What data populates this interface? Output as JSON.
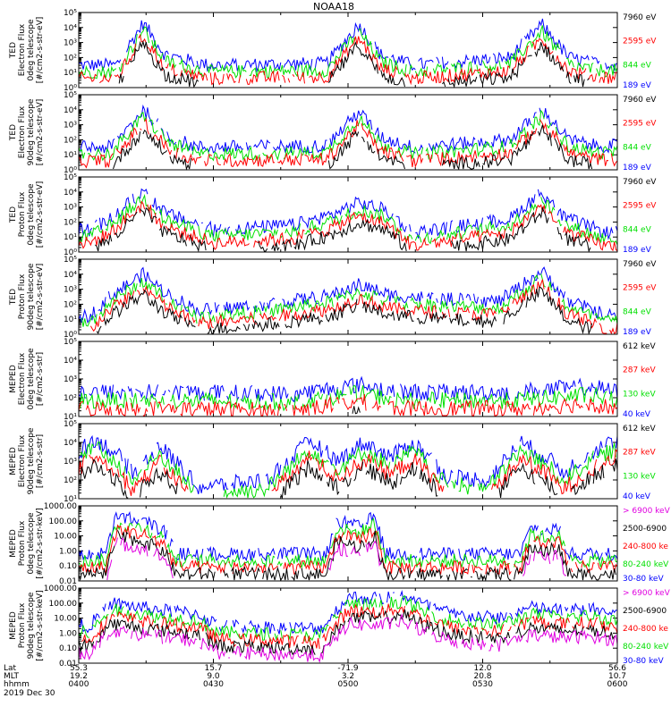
{
  "title": "NOAA18",
  "footer": {
    "row_labels": [
      "Lat",
      "MLT",
      "hhmm",
      "2019 Dec 30"
    ],
    "ticks": [
      {
        "lat": "55.3",
        "mlt": "19.2",
        "hhmm": "0400"
      },
      {
        "lat": "15.7",
        "mlt": "9.0",
        "hhmm": "0430"
      },
      {
        "lat": "-71.9",
        "mlt": "3.2",
        "hhmm": "0500"
      },
      {
        "lat": "12.0",
        "mlt": "20.8",
        "hhmm": "0530"
      },
      {
        "lat": "56.6",
        "mlt": "10.7",
        "hhmm": "0600"
      }
    ]
  },
  "colors": {
    "black": "#000000",
    "red": "#ff0000",
    "green": "#00e000",
    "blue": "#0000ff",
    "magenta": "#e000e0"
  },
  "chart_data": [
    {
      "type": "line",
      "ylabel": [
        "TED",
        "Electron Flux",
        "0deg telescope",
        "[#/cm2-s-str-eV]"
      ],
      "ylim": [
        1,
        100000
      ],
      "scale": "log",
      "tick_labels": [
        "10⁰",
        "10¹",
        "10²",
        "10³",
        "10⁴",
        "10⁵"
      ],
      "series": [
        {
          "name": "7960 eV",
          "color": "black"
        },
        {
          "name": "2595 eV",
          "color": "red"
        },
        {
          "name": "844 eV",
          "color": "green"
        },
        {
          "name": "189 eV",
          "color": "blue"
        }
      ],
      "profile": [
        [
          0.07,
          1.5
        ],
        [
          0.12,
          4.3
        ],
        [
          0.16,
          2.2
        ],
        [
          0.24,
          1.5
        ],
        [
          0.46,
          1.6
        ],
        [
          0.52,
          4.2
        ],
        [
          0.56,
          2.2
        ],
        [
          0.62,
          1.5
        ],
        [
          0.8,
          2.0
        ],
        [
          0.86,
          4.2
        ],
        [
          0.91,
          2.0
        ],
        [
          0.96,
          1.6
        ]
      ]
    },
    {
      "type": "line",
      "ylabel": [
        "TED",
        "Electron Flux",
        "90deg telescope",
        "[#/cm2-s-str-eV]"
      ],
      "ylim": [
        1,
        100000
      ],
      "scale": "log",
      "tick_labels": [
        "10⁰",
        "10¹",
        "10²",
        "10³",
        "10⁴",
        "10⁵"
      ],
      "series": [
        {
          "name": "7960 eV",
          "color": "black"
        },
        {
          "name": "2595 eV",
          "color": "red"
        },
        {
          "name": "844 eV",
          "color": "green"
        },
        {
          "name": "189 eV",
          "color": "blue"
        }
      ],
      "profile": [
        [
          0.06,
          1.5
        ],
        [
          0.12,
          4.0
        ],
        [
          0.17,
          2.2
        ],
        [
          0.22,
          1.5
        ],
        [
          0.46,
          1.6
        ],
        [
          0.52,
          3.9
        ],
        [
          0.56,
          2.2
        ],
        [
          0.62,
          1.5
        ],
        [
          0.8,
          2.0
        ],
        [
          0.86,
          4.0
        ],
        [
          0.91,
          2.0
        ],
        [
          0.96,
          1.6
        ]
      ]
    },
    {
      "type": "line",
      "ylabel": [
        "TED",
        "Proton Flux",
        "0deg telescope",
        "[#/cm2-s-str-eV]"
      ],
      "ylim": [
        1,
        100000
      ],
      "scale": "log",
      "tick_labels": [
        "10⁰",
        "10¹",
        "10²",
        "10³",
        "10⁴",
        "10⁵"
      ],
      "series": [
        {
          "name": "7960 eV",
          "color": "black"
        },
        {
          "name": "2595 eV",
          "color": "red"
        },
        {
          "name": "844 eV",
          "color": "green"
        },
        {
          "name": "189 eV",
          "color": "blue"
        }
      ],
      "profile": [
        [
          0.02,
          1.5
        ],
        [
          0.06,
          2.2
        ],
        [
          0.12,
          4.1
        ],
        [
          0.16,
          2.6
        ],
        [
          0.25,
          1.5
        ],
        [
          0.4,
          1.8
        ],
        [
          0.47,
          2.5
        ],
        [
          0.52,
          3.3
        ],
        [
          0.57,
          2.8
        ],
        [
          0.62,
          1.3
        ],
        [
          0.8,
          2.2
        ],
        [
          0.86,
          4.0
        ],
        [
          0.9,
          2.3
        ],
        [
          0.98,
          1.3
        ]
      ]
    },
    {
      "type": "line",
      "ylabel": [
        "TED",
        "Proton Flux",
        "90deg telescope",
        "[#/cm2-s-str-eV]"
      ],
      "ylim": [
        1,
        100000
      ],
      "scale": "log",
      "tick_labels": [
        "10⁰",
        "10¹",
        "10²",
        "10³",
        "10⁴",
        "10⁵"
      ],
      "series": [
        {
          "name": "7960 eV",
          "color": "black"
        },
        {
          "name": "2595 eV",
          "color": "red"
        },
        {
          "name": "844 eV",
          "color": "green"
        },
        {
          "name": "189 eV",
          "color": "blue"
        }
      ],
      "profile": [
        [
          0.02,
          1.2
        ],
        [
          0.06,
          2.6
        ],
        [
          0.12,
          4.0
        ],
        [
          0.16,
          2.8
        ],
        [
          0.22,
          1.6
        ],
        [
          0.35,
          2.0
        ],
        [
          0.47,
          2.6
        ],
        [
          0.52,
          3.3
        ],
        [
          0.58,
          2.6
        ],
        [
          0.7,
          2.3
        ],
        [
          0.78,
          2.2
        ],
        [
          0.86,
          4.2
        ],
        [
          0.91,
          2.2
        ],
        [
          0.98,
          1.3
        ]
      ]
    },
    {
      "type": "line",
      "ylabel": [
        "MEPED",
        "Electron Flux",
        "0deg telescope",
        "[#/cm2-s-str]"
      ],
      "ylim": [
        10,
        100000
      ],
      "scale": "log",
      "tick_labels": [
        "10¹",
        "10²",
        "10³",
        "10⁴",
        "10⁵"
      ],
      "series": [
        {
          "name": "612 keV",
          "color": "black"
        },
        {
          "name": "287 keV",
          "color": "red"
        },
        {
          "name": "130 keV",
          "color": "green"
        },
        {
          "name": "40 keV",
          "color": "blue"
        }
      ],
      "profile": [
        [
          0.0,
          2.3
        ],
        [
          0.2,
          2.3
        ],
        [
          0.4,
          2.2
        ],
        [
          0.52,
          2.7
        ],
        [
          0.6,
          2.3
        ],
        [
          0.8,
          2.3
        ],
        [
          0.95,
          2.6
        ],
        [
          1.0,
          2.3
        ]
      ]
    },
    {
      "type": "line",
      "ylabel": [
        "MEPED",
        "Electron Flux",
        "90deg telescope",
        "[#/cm2-s-str]"
      ],
      "ylim": [
        10,
        100000
      ],
      "scale": "log",
      "tick_labels": [
        "10¹",
        "10²",
        "10³",
        "10⁴",
        "10⁵"
      ],
      "series": [
        {
          "name": "612 keV",
          "color": "black"
        },
        {
          "name": "287 keV",
          "color": "red"
        },
        {
          "name": "130 keV",
          "color": "green"
        },
        {
          "name": "40 keV",
          "color": "blue"
        }
      ],
      "profile": [
        [
          0.0,
          3.5
        ],
        [
          0.03,
          4.2
        ],
        [
          0.07,
          3.4
        ],
        [
          0.1,
          2.4
        ],
        [
          0.15,
          3.8
        ],
        [
          0.19,
          2.7
        ],
        [
          0.22,
          1.6
        ],
        [
          0.35,
          2.0
        ],
        [
          0.43,
          4.1
        ],
        [
          0.48,
          3.0
        ],
        [
          0.53,
          4.0
        ],
        [
          0.58,
          3.2
        ],
        [
          0.62,
          4.0
        ],
        [
          0.66,
          3.0
        ],
        [
          0.68,
          2.2
        ],
        [
          0.76,
          2.0
        ],
        [
          0.82,
          4.0
        ],
        [
          0.87,
          3.2
        ],
        [
          0.9,
          2.4
        ],
        [
          0.95,
          3.5
        ],
        [
          1.0,
          4.1
        ]
      ]
    },
    {
      "type": "line",
      "ylabel": [
        "MEPED",
        "Proton Flux",
        "0deg telescope",
        "[#/cm2-s-str-keV]"
      ],
      "ylim": [
        0.01,
        1000
      ],
      "scale": "log",
      "tick_labels": [
        "0.01",
        "0.10",
        "1.00",
        "10.00",
        "100.00",
        "1000.00"
      ],
      "series": [
        {
          "name": "> 6900 keV",
          "color": "magenta"
        },
        {
          "name": "2500-6900",
          "color": "black"
        },
        {
          "name": "240-800 ke",
          "color": "red"
        },
        {
          "name": "80-240 keV",
          "color": "green"
        },
        {
          "name": "30-80 keV",
          "color": "blue"
        }
      ],
      "profile": [
        [
          0.05,
          -0.2
        ],
        [
          0.07,
          2.3
        ],
        [
          0.12,
          2.0
        ],
        [
          0.16,
          1.3
        ],
        [
          0.18,
          -0.2
        ],
        [
          0.46,
          -0.2
        ],
        [
          0.48,
          2.0
        ],
        [
          0.52,
          1.6
        ],
        [
          0.55,
          2.3
        ],
        [
          0.57,
          -0.2
        ],
        [
          0.82,
          -0.2
        ],
        [
          0.84,
          1.6
        ],
        [
          0.87,
          1.3
        ],
        [
          0.89,
          1.6
        ],
        [
          0.91,
          -0.2
        ]
      ]
    },
    {
      "type": "line",
      "ylabel": [
        "MEPED",
        "Proton Flux",
        "90deg telescope",
        "[#/cm2-s-str-keV]"
      ],
      "ylim": [
        0.01,
        1000
      ],
      "scale": "log",
      "tick_labels": [
        "0.01",
        "0.10",
        "1.00",
        "10.00",
        "100.00",
        "1000.00"
      ],
      "series": [
        {
          "name": "> 6900 keV",
          "color": "magenta"
        },
        {
          "name": "2500-6900",
          "color": "black"
        },
        {
          "name": "240-800 ke",
          "color": "red"
        },
        {
          "name": "80-240 keV",
          "color": "green"
        },
        {
          "name": "30-80 keV",
          "color": "blue"
        }
      ],
      "profile": [
        [
          0.02,
          0.5
        ],
        [
          0.06,
          2.0
        ],
        [
          0.1,
          1.8
        ],
        [
          0.16,
          1.5
        ],
        [
          0.22,
          1.3
        ],
        [
          0.26,
          0.5
        ],
        [
          0.45,
          0.3
        ],
        [
          0.5,
          2.4
        ],
        [
          0.56,
          2.3
        ],
        [
          0.6,
          2.6
        ],
        [
          0.64,
          1.9
        ],
        [
          0.7,
          1.2
        ],
        [
          0.78,
          1.0
        ],
        [
          0.84,
          1.7
        ],
        [
          0.9,
          1.5
        ],
        [
          0.95,
          1.6
        ],
        [
          1.0,
          1.3
        ]
      ]
    }
  ]
}
